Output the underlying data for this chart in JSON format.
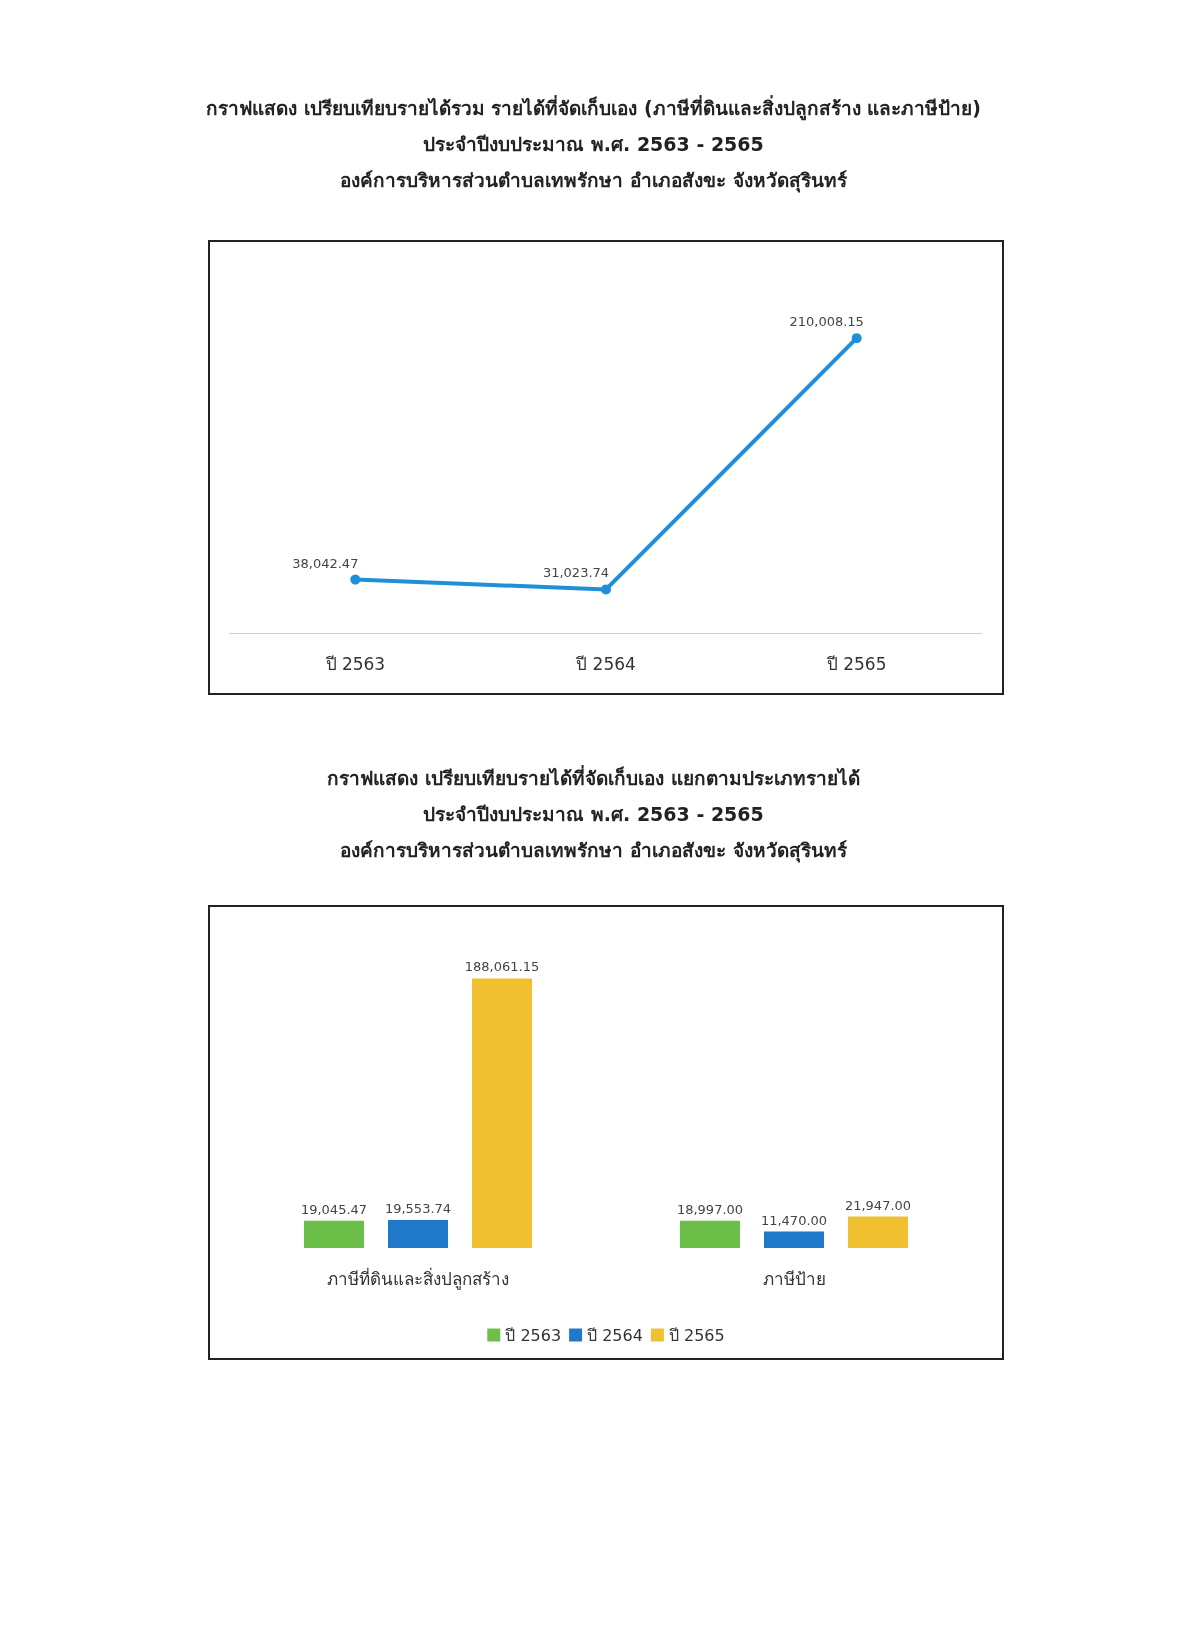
{
  "chart_data": [
    {
      "type": "line",
      "title": "กราฟแสดง เปรียบเทียบรายได้รวม รายได้ที่จัดเก็บเอง (ภาษีที่ดินและสิ่งปลูกสร้าง และภาษีป้าย)",
      "subtitle": "ประจำปีงบประมาณ พ.ศ. 2563 - 2565\nองค์การบริหารส่วนตำบลเทพรักษา อำเภอสังขะ จังหวัดสุรินทร์",
      "categories": [
        "ปี 2563",
        "ปี 2564",
        "ปี 2565"
      ],
      "series": [
        {
          "color": "#1f8fd8",
          "values": [
            38042.47,
            31023.74,
            210008.15
          ],
          "value_labels": [
            "38,042.47",
            "31,023.74",
            "210,008.15"
          ]
        }
      ],
      "marker": "circle",
      "line_style": "solid",
      "grid": false,
      "legend": false,
      "tick_labels": "x"
    },
    {
      "type": "bar",
      "title": "กราฟแสดง เปรียบเทียบรายได้ที่จัดเก็บเอง แยกตามประเภทรายได้",
      "subtitle": "ประจำปีงบประมาณ พ.ศ. 2563 - 2565\nองค์การบริหารส่วนตำบลเทพรักษา อำเภอสังขะ จังหวัดสุรินทร์",
      "categories": [
        "ภาษีที่ดินและสิ่งปลูกสร้าง",
        "ภาษีป้าย"
      ],
      "series": [
        {
          "name": "ปี 2563",
          "color": "#6cc04a",
          "values": [
            19045.47,
            18997.0
          ],
          "value_labels": [
            "19,045.47",
            "18,997.00"
          ]
        },
        {
          "name": "ปี 2564",
          "color": "#1f78c8",
          "values": [
            19553.74,
            11470.0
          ],
          "value_labels": [
            "19,553.74",
            "11,470.00"
          ]
        },
        {
          "name": "ปี 2565",
          "color": "#f0c030",
          "values": [
            188061.15,
            21947.0
          ],
          "value_labels": [
            "188,061.15",
            "21,947.00"
          ]
        }
      ],
      "grid": false,
      "legend": "bottom",
      "tick_labels": "x"
    }
  ]
}
